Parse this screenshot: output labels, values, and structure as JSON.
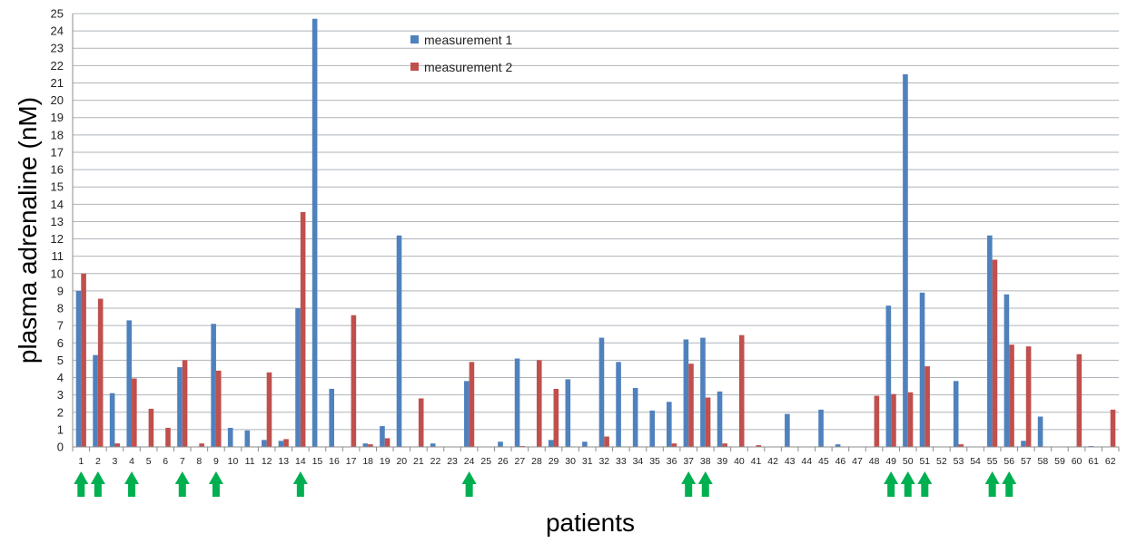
{
  "colors": {
    "series1": "#4f81bd",
    "series2": "#c0504d",
    "grid": "#aeb4ba",
    "arrow": "#00b050"
  },
  "chart_data": {
    "type": "bar",
    "xlabel": "patients",
    "ylabel": "plasma adrenaline (nM)",
    "ylim": [
      0,
      25
    ],
    "yticks": [
      0,
      1,
      2,
      3,
      4,
      5,
      6,
      7,
      8,
      9,
      10,
      11,
      12,
      13,
      14,
      15,
      16,
      17,
      18,
      19,
      20,
      21,
      22,
      23,
      24,
      25
    ],
    "grid": true,
    "legend_position": "top-center",
    "categories": [
      "1",
      "2",
      "3",
      "4",
      "5",
      "6",
      "7",
      "8",
      "9",
      "10",
      "11",
      "12",
      "13",
      "14",
      "15",
      "16",
      "17",
      "18",
      "19",
      "20",
      "21",
      "22",
      "23",
      "24",
      "25",
      "26",
      "27",
      "28",
      "29",
      "30",
      "31",
      "32",
      "33",
      "34",
      "35",
      "36",
      "37",
      "38",
      "39",
      "40",
      "41",
      "42",
      "43",
      "44",
      "45",
      "46",
      "47",
      "48",
      "49",
      "50",
      "51",
      "52",
      "53",
      "54",
      "55",
      "56",
      "57",
      "58",
      "59",
      "60",
      "61",
      "62"
    ],
    "series": [
      {
        "name": "measurement 1",
        "values": [
          9.0,
          5.3,
          3.1,
          7.3,
          0,
          0,
          4.6,
          0,
          7.1,
          1.1,
          0.95,
          0.4,
          0.35,
          8.0,
          24.7,
          3.35,
          0,
          0.2,
          1.2,
          12.2,
          0,
          0.2,
          0,
          3.8,
          0,
          0.3,
          5.1,
          0,
          0.4,
          3.9,
          0.3,
          6.3,
          4.9,
          3.4,
          2.1,
          2.6,
          6.2,
          6.3,
          3.2,
          0,
          0,
          0,
          1.9,
          0,
          2.15,
          0.15,
          0,
          0,
          8.15,
          21.5,
          8.9,
          0,
          3.8,
          0,
          12.2,
          8.8,
          0.35,
          1.75,
          0,
          0,
          0.05,
          0
        ]
      },
      {
        "name": "measurement 2",
        "values": [
          10.0,
          8.55,
          0.2,
          3.95,
          2.2,
          1.1,
          5.0,
          0.2,
          4.4,
          0,
          0,
          4.3,
          0.45,
          13.55,
          0,
          0,
          7.6,
          0.15,
          0.5,
          0,
          2.8,
          0,
          0,
          4.9,
          0,
          0,
          0.05,
          5.0,
          3.35,
          0,
          0,
          0.6,
          0,
          0,
          0,
          0.2,
          4.8,
          2.85,
          0.2,
          6.45,
          0.1,
          0,
          0,
          0,
          0,
          0,
          0,
          2.95,
          3.05,
          3.15,
          4.65,
          0,
          0.15,
          0,
          10.8,
          5.9,
          5.8,
          0,
          0,
          5.35,
          0,
          2.15
        ]
      }
    ],
    "arrow_patients": [
      "1",
      "2",
      "4",
      "7",
      "9",
      "14",
      "24",
      "37",
      "38",
      "49",
      "50",
      "51",
      "55",
      "56"
    ]
  }
}
